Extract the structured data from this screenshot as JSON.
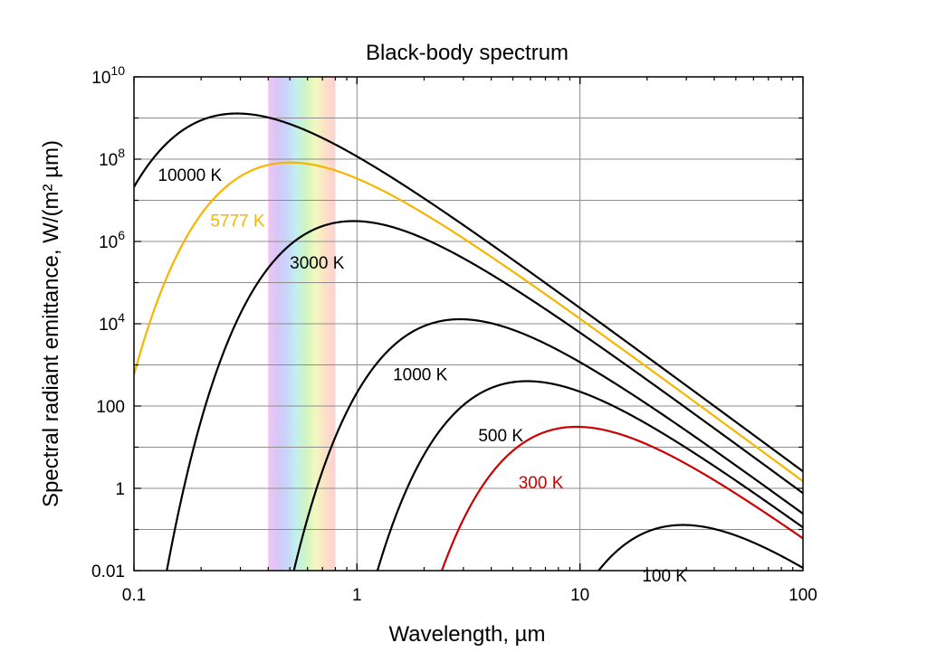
{
  "chart_data": {
    "type": "line",
    "title": "Black-body spectrum",
    "xlabel": "Wavelength, µm",
    "ylabel": "Spectral radiant emittance, W/(m² µm)",
    "xscale": "log",
    "yscale": "log",
    "xlim": [
      0.1,
      100
    ],
    "ylim": [
      0.01,
      10000000000
    ],
    "grid": true,
    "visible_band_um": [
      0.4,
      0.8
    ],
    "x_ticks": [
      {
        "value": 0.1,
        "label": "0.1"
      },
      {
        "value": 1,
        "label": "1"
      },
      {
        "value": 10,
        "label": "10"
      },
      {
        "value": 100,
        "label": "100"
      }
    ],
    "y_ticks": [
      {
        "value": 0.01,
        "base": "0.01",
        "exp": ""
      },
      {
        "value": 1,
        "base": "1",
        "exp": ""
      },
      {
        "value": 100,
        "base": "100",
        "exp": ""
      },
      {
        "value": 10000,
        "base": "10",
        "exp": "4"
      },
      {
        "value": 1000000,
        "base": "10",
        "exp": "6"
      },
      {
        "value": 100000000,
        "base": "10",
        "exp": "8"
      },
      {
        "value": 10000000000,
        "base": "10",
        "exp": "10"
      }
    ],
    "series": [
      {
        "name": "10000 K",
        "temperature_K": 10000,
        "color": "#000000",
        "peak": {
          "x": 0.29,
          "y": 1230000000
        }
      },
      {
        "name": "5777 K",
        "temperature_K": 5777,
        "color": "#f7b500",
        "peak": {
          "x": 0.5,
          "y": 83000000
        }
      },
      {
        "name": "3000 K",
        "temperature_K": 3000,
        "color": "#000000",
        "peak": {
          "x": 0.97,
          "y": 3100000
        }
      },
      {
        "name": "1000 K",
        "temperature_K": 1000,
        "color": "#000000",
        "peak": {
          "x": 2.9,
          "y": 12800
        }
      },
      {
        "name": "500 K",
        "temperature_K": 500,
        "color": "#000000",
        "peak": {
          "x": 5.8,
          "y": 400
        }
      },
      {
        "name": "300 K",
        "temperature_K": 300,
        "color": "#cc0000",
        "peak": {
          "x": 9.7,
          "y": 31
        }
      },
      {
        "name": "100 K",
        "temperature_K": 100,
        "color": "#000000",
        "peak": {
          "x": 29,
          "y": 0.128
        }
      }
    ]
  }
}
